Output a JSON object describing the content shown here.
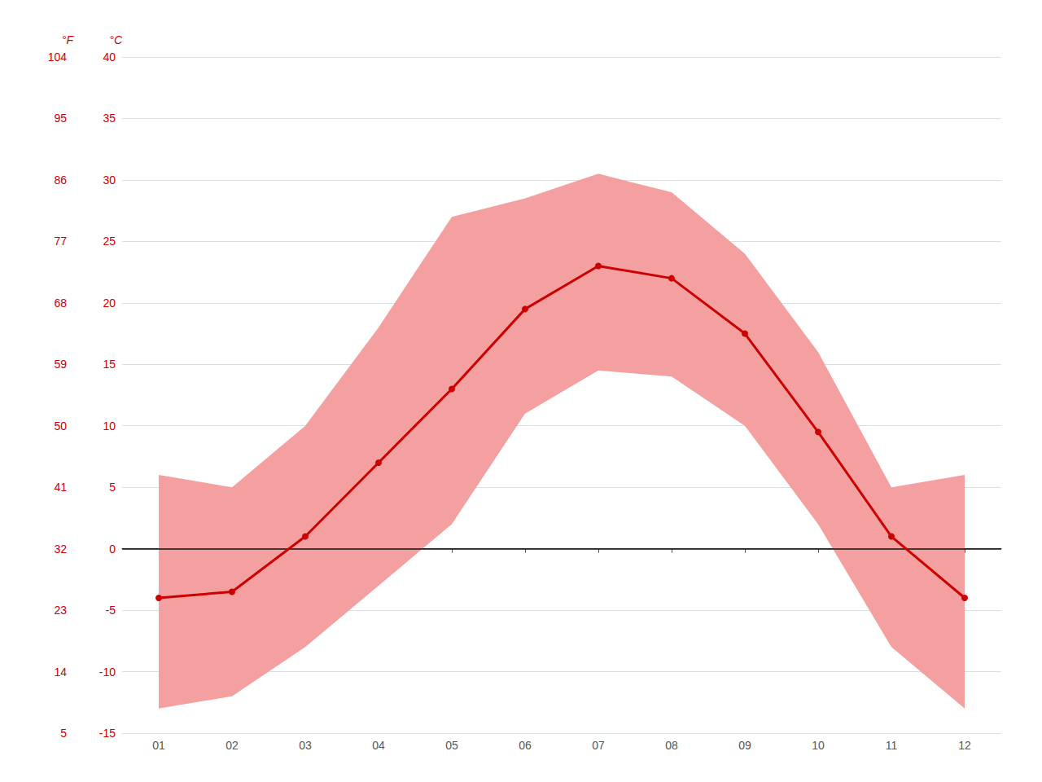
{
  "chart_data": {
    "type": "line",
    "categories": [
      "01",
      "02",
      "03",
      "04",
      "05",
      "06",
      "07",
      "08",
      "09",
      "10",
      "11",
      "12"
    ],
    "ylabel": "°C",
    "ylim": [
      -15,
      40
    ],
    "yticks": [
      -15,
      -10,
      -5,
      0,
      5,
      10,
      15,
      20,
      25,
      30,
      35,
      40
    ],
    "y2label": "°F",
    "y2lim": [
      5,
      104
    ],
    "y2ticks": [
      5,
      14,
      23,
      32,
      41,
      50,
      59,
      68,
      77,
      86,
      95,
      104
    ],
    "grid": true,
    "reference_line": 0,
    "series": [
      {
        "type": "band",
        "color": "#f4a0a0",
        "low": [
          -13.0,
          -12.0,
          -8.0,
          -3.0,
          2.0,
          11.0,
          14.5,
          14.0,
          10.0,
          2.0,
          -8.0,
          -13.0
        ],
        "high": [
          6.0,
          5.0,
          10.0,
          18.0,
          27.0,
          28.5,
          30.5,
          29.0,
          24.0,
          16.0,
          5.0,
          6.0
        ]
      },
      {
        "type": "line",
        "color": "#cc0000",
        "marker": "circle",
        "values": [
          -4.0,
          -3.5,
          1.0,
          7.0,
          13.0,
          19.5,
          23.0,
          22.0,
          17.5,
          9.5,
          1.0,
          -4.0
        ]
      }
    ]
  }
}
